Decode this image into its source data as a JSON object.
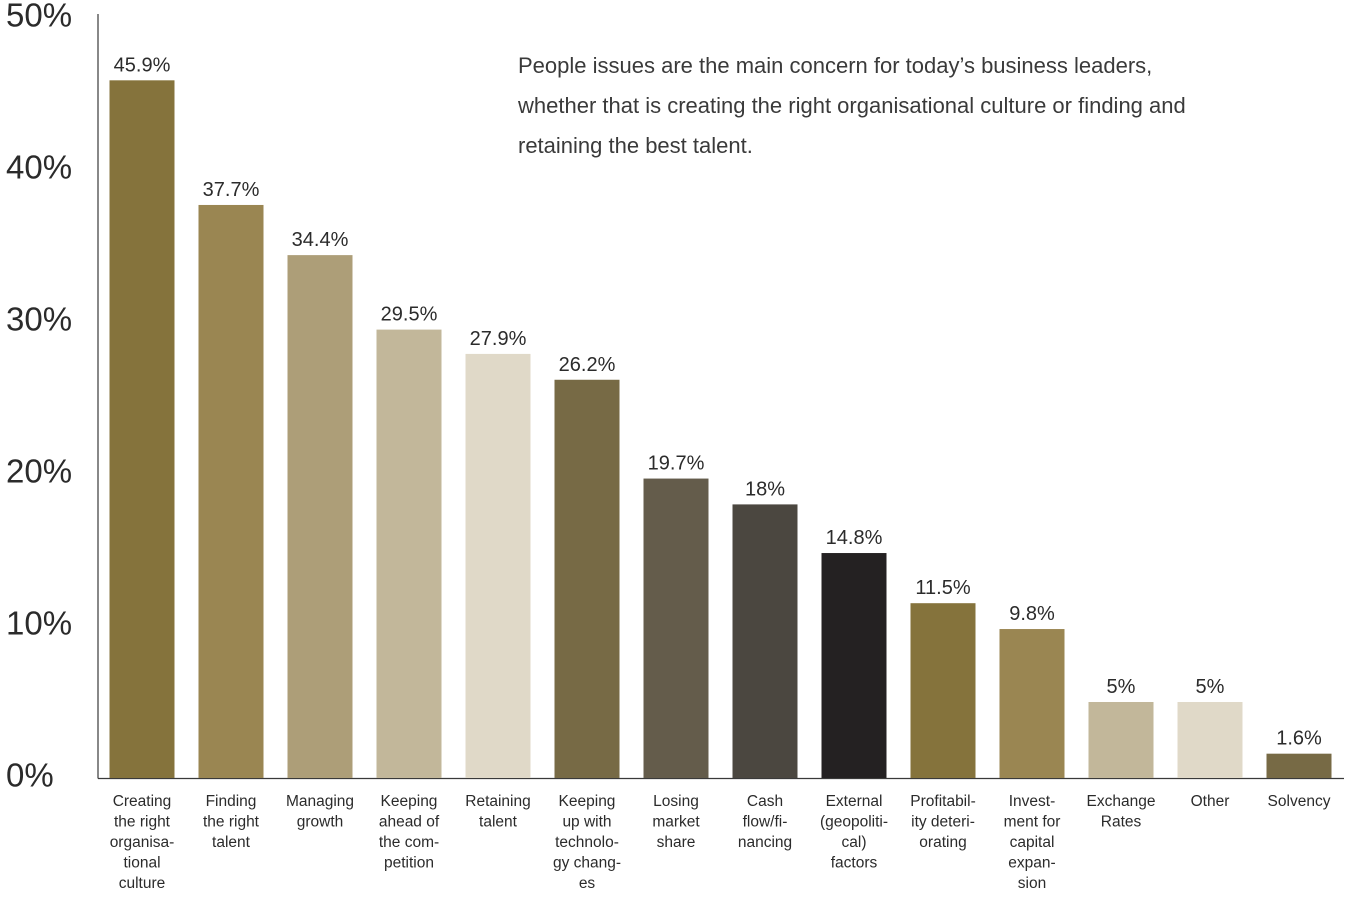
{
  "chart_data": {
    "type": "bar",
    "title": "",
    "xlabel": "",
    "ylabel": "",
    "ylim": [
      0,
      50
    ],
    "y_ticks": [
      "0%",
      "10%",
      "20%",
      "30%",
      "40%",
      "50%"
    ],
    "y_tick_values": [
      0,
      10,
      20,
      30,
      40,
      50
    ],
    "grid": false,
    "annotation": "People issues are the main concern for today’s business leaders,\nwhether that is creating the right organisational culture or finding and\nretaining the best talent.",
    "categories": [
      "Creating the right organisa- tional culture",
      "Finding the right talent",
      "Managing growth",
      "Keeping ahead of the com- petition",
      "Retaining talent",
      "Keeping up with technolo- gy chang- es",
      "Losing market share",
      "Cash flow/fi- nancing",
      "External (geopoliti- cal) factors",
      "Profitabil- ity deteri- orating",
      "Invest- ment for capital expan- sion",
      "Exchange Rates",
      "Other",
      "Solvency"
    ],
    "category_lines": [
      [
        "Creating",
        "the right",
        "organisa-",
        "tional",
        "culture"
      ],
      [
        "Finding",
        "the right",
        "talent"
      ],
      [
        "Managing",
        "growth"
      ],
      [
        "Keeping",
        "ahead of",
        "the com-",
        "petition"
      ],
      [
        "Retaining",
        "talent"
      ],
      [
        "Keeping",
        "up with",
        "technolo-",
        "gy chang-",
        "es"
      ],
      [
        "Losing",
        "market",
        "share"
      ],
      [
        "Cash",
        "flow/fi-",
        "nancing"
      ],
      [
        "External",
        "(geopoliti-",
        "cal)",
        "factors"
      ],
      [
        "Profitabil-",
        "ity deteri-",
        "orating"
      ],
      [
        "Invest-",
        "ment for",
        "capital",
        "expan-",
        "sion"
      ],
      [
        "Exchange",
        "Rates"
      ],
      [
        "Other"
      ],
      [
        "Solvency"
      ]
    ],
    "values": [
      45.9,
      37.7,
      34.4,
      29.5,
      27.9,
      26.2,
      19.7,
      18,
      14.8,
      11.5,
      9.8,
      5,
      5,
      1.6
    ],
    "value_labels": [
      "45.9%",
      "37.7%",
      "34.4%",
      "29.5%",
      "27.9%",
      "26.2%",
      "19.7%",
      "18%",
      "14.8%",
      "11.5%",
      "9.8%",
      "5%",
      "5%",
      "1.6%"
    ],
    "colors": [
      "#85733c",
      "#9a8652",
      "#ad9e78",
      "#c2b79a",
      "#e0d9c8",
      "#776a45",
      "#645c4b",
      "#4b4740",
      "#242122",
      "#85733c",
      "#9a8652",
      "#c2b79a",
      "#e0d9c8",
      "#776a45"
    ]
  }
}
